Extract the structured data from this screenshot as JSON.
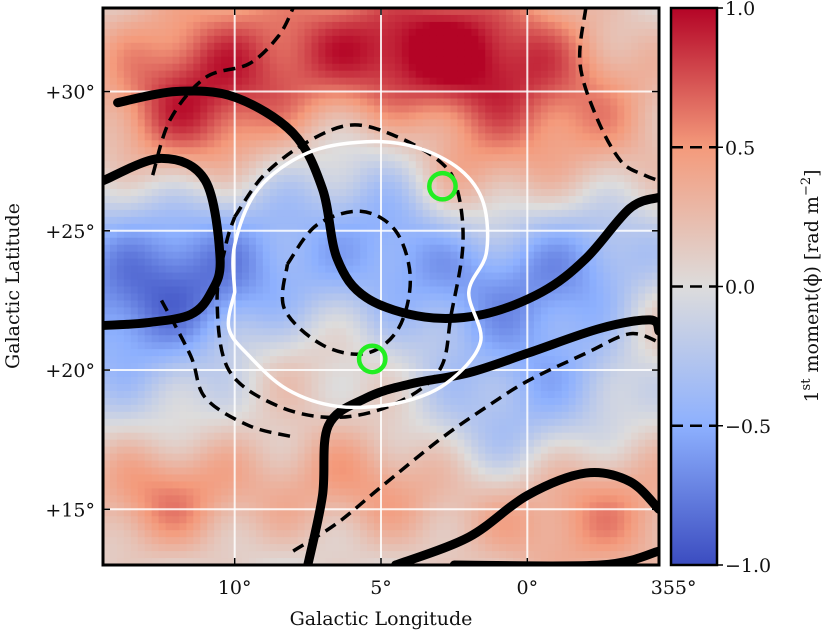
{
  "chart_data": {
    "type": "heatmap",
    "title": "",
    "xlabel": "Galactic Longitude",
    "ylabel": "Galactic Latitude",
    "x_axis_reversed": true,
    "xlim": [
      14.5,
      355.5
    ],
    "ylim": [
      13.0,
      33.0
    ],
    "x_ticks": [
      {
        "value": 10,
        "label": "10°"
      },
      {
        "value": 5,
        "label": "5°"
      },
      {
        "value": 0,
        "label": "0°"
      },
      {
        "value": 355,
        "label": "355°"
      }
    ],
    "y_ticks": [
      {
        "value": 15,
        "label": "+15°"
      },
      {
        "value": 20,
        "label": "+20°"
      },
      {
        "value": 25,
        "label": "+25°"
      },
      {
        "value": 30,
        "label": "+30°"
      }
    ],
    "grid": true,
    "grid_color": "#ffffff",
    "colorbar": {
      "label_prefix": "1",
      "label_sup": "st",
      "label_main": " moment(ϕ) [rad m",
      "label_exp": "−2",
      "label_suffix": "]",
      "colormap": "coolwarm",
      "range": [
        -1.0,
        1.0
      ],
      "ticks": [
        {
          "value": 1.0,
          "label": "1.0"
        },
        {
          "value": 0.5,
          "label": "0.5"
        },
        {
          "value": 0.0,
          "label": "0.0"
        },
        {
          "value": -0.5,
          "label": "−0.5"
        },
        {
          "value": -1.0,
          "label": "−1.0"
        }
      ],
      "contour_levels": [
        0.5,
        0.0,
        -0.5
      ]
    },
    "heatmap_blobs": [
      {
        "l": 8.5,
        "b": 31.5,
        "amp": 0.55,
        "sl": 4.0,
        "sb": 2.0
      },
      {
        "l": 11.5,
        "b": 29.0,
        "amp": 0.7,
        "sl": 2.2,
        "sb": 2.0
      },
      {
        "l": 2.5,
        "b": 31.5,
        "amp": 0.85,
        "sl": 3.0,
        "sb": 1.8
      },
      {
        "l": 358.5,
        "b": 29.0,
        "amp": 0.45,
        "sl": 3.0,
        "sb": 2.0
      },
      {
        "l": 2.8,
        "b": 26.5,
        "amp": 0.55,
        "sl": 1.8,
        "sb": 1.5
      },
      {
        "l": 12.5,
        "b": 22.5,
        "amp": -0.85,
        "sl": 2.8,
        "sb": 2.5
      },
      {
        "l": 7.0,
        "b": 24.5,
        "amp": -0.35,
        "sl": 3.5,
        "sb": 2.5
      },
      {
        "l": 4.0,
        "b": 26.0,
        "amp": -0.45,
        "sl": 1.5,
        "sb": 2.0
      },
      {
        "l": 0.5,
        "b": 23.0,
        "amp": -0.5,
        "sl": 2.5,
        "sb": 2.0
      },
      {
        "l": 357.0,
        "b": 24.0,
        "amp": -0.35,
        "sl": 2.0,
        "sb": 1.5
      },
      {
        "l": 9.0,
        "b": 20.5,
        "amp": 0.35,
        "sl": 3.0,
        "sb": 1.5
      },
      {
        "l": 358.5,
        "b": 19.5,
        "amp": -0.35,
        "sl": 3.0,
        "sb": 1.8
      },
      {
        "l": 5.5,
        "b": 16.0,
        "amp": 0.45,
        "sl": 3.0,
        "sb": 1.5
      },
      {
        "l": 12.5,
        "b": 15.5,
        "amp": 0.55,
        "sl": 2.0,
        "sb": 1.5
      },
      {
        "l": 358.0,
        "b": 15.0,
        "amp": 0.55,
        "sl": 3.0,
        "sb": 2.0
      },
      {
        "l": 1.0,
        "b": 17.0,
        "amp": -0.35,
        "sl": 2.0,
        "sb": 1.5
      },
      {
        "l": 355.5,
        "b": 21.5,
        "amp": 0.3,
        "sl": 1.5,
        "sb": 2.0
      }
    ],
    "overlay_lines": [
      {
        "style": "solid-thick",
        "color": "#000000",
        "points": [
          [
            14.0,
            29.6
          ],
          [
            12.0,
            30.0
          ],
          [
            10.0,
            29.8
          ],
          [
            8.0,
            28.5
          ],
          [
            7.0,
            26.5
          ],
          [
            6.5,
            24.0
          ],
          [
            5.5,
            22.6
          ],
          [
            3.5,
            21.9
          ],
          [
            1.5,
            22.0
          ],
          [
            359.5,
            22.8
          ],
          [
            358.0,
            24.0
          ],
          [
            356.5,
            25.8
          ],
          [
            355.5,
            26.2
          ]
        ]
      },
      {
        "style": "solid-thick",
        "color": "#000000",
        "points": [
          [
            14.5,
            26.8
          ],
          [
            12.5,
            27.6
          ],
          [
            11.0,
            26.8
          ],
          [
            10.5,
            24.0
          ],
          [
            10.8,
            22.8
          ],
          [
            11.5,
            22.0
          ],
          [
            13.0,
            21.7
          ],
          [
            14.5,
            21.6
          ]
        ]
      },
      {
        "style": "solid-thick",
        "color": "#000000",
        "points": [
          [
            7.5,
            13.0
          ],
          [
            7.0,
            15.5
          ],
          [
            6.8,
            18.0
          ],
          [
            5.5,
            19.0
          ],
          [
            4.0,
            19.5
          ],
          [
            2.0,
            19.9
          ],
          [
            0.0,
            20.6
          ],
          [
            357.5,
            21.5
          ],
          [
            355.8,
            21.8
          ],
          [
            355.5,
            21.4
          ]
        ]
      },
      {
        "style": "solid-thick",
        "color": "#000000",
        "points": [
          [
            4.5,
            13.0
          ],
          [
            2.0,
            14.0
          ],
          [
            0.0,
            15.5
          ],
          [
            358.0,
            16.3
          ],
          [
            356.5,
            16.0
          ],
          [
            355.5,
            15.0
          ]
        ]
      },
      {
        "style": "solid-thick",
        "color": "#000000",
        "points": [
          [
            362.5,
            13.0
          ],
          [
            357.5,
            13.0
          ],
          [
            355.5,
            13.5
          ]
        ]
      },
      {
        "style": "dashed",
        "color": "#000000",
        "points": [
          [
            10.0,
            25.5
          ],
          [
            9.0,
            27.0
          ],
          [
            7.5,
            28.2
          ],
          [
            6.0,
            28.8
          ],
          [
            4.5,
            28.4
          ],
          [
            3.0,
            27.5
          ],
          [
            2.4,
            26.5
          ],
          [
            2.2,
            24.5
          ],
          [
            2.6,
            22.0
          ],
          [
            3.0,
            20.0
          ],
          [
            4.5,
            18.8
          ],
          [
            6.5,
            18.3
          ],
          [
            8.5,
            18.7
          ],
          [
            10.2,
            20.0
          ],
          [
            10.6,
            22.5
          ],
          [
            10.3,
            24.5
          ],
          [
            10.0,
            25.5
          ]
        ]
      },
      {
        "style": "dashed",
        "color": "#000000",
        "points": [
          [
            8.2,
            23.8
          ],
          [
            7.2,
            25.2
          ],
          [
            5.7,
            25.7
          ],
          [
            4.5,
            25.0
          ],
          [
            4.0,
            23.3
          ],
          [
            4.4,
            21.5
          ],
          [
            5.5,
            20.6
          ],
          [
            7.0,
            20.9
          ],
          [
            8.3,
            22.2
          ],
          [
            8.2,
            23.8
          ]
        ]
      },
      {
        "style": "dashed",
        "color": "#000000",
        "points": [
          [
            12.8,
            27.0
          ],
          [
            12.2,
            29.0
          ],
          [
            11.0,
            30.5
          ],
          [
            9.5,
            31.0
          ],
          [
            8.5,
            32.0
          ],
          [
            8.0,
            33.0
          ]
        ]
      },
      {
        "style": "dashed",
        "color": "#000000",
        "points": [
          [
            358.0,
            33.0
          ],
          [
            358.2,
            31.0
          ],
          [
            357.6,
            29.0
          ],
          [
            356.8,
            27.5
          ],
          [
            356.0,
            27.0
          ],
          [
            355.5,
            26.8
          ]
        ]
      },
      {
        "style": "dashed",
        "color": "#000000",
        "points": [
          [
            8.0,
            13.5
          ],
          [
            6.5,
            14.5
          ],
          [
            5.0,
            15.8
          ],
          [
            3.0,
            17.5
          ],
          [
            1.5,
            18.6
          ],
          [
            0.0,
            19.6
          ],
          [
            358.0,
            20.6
          ],
          [
            356.5,
            21.3
          ],
          [
            355.5,
            21.0
          ]
        ]
      },
      {
        "style": "dashed",
        "color": "#000000",
        "points": [
          [
            12.5,
            22.5
          ],
          [
            11.5,
            20.5
          ],
          [
            11.0,
            19.0
          ],
          [
            9.5,
            18.0
          ],
          [
            8.0,
            17.6
          ]
        ]
      },
      {
        "style": "solid-white",
        "color": "#ffffff",
        "points": [
          [
            10.0,
            22.8
          ],
          [
            10.0,
            24.5
          ],
          [
            9.2,
            26.5
          ],
          [
            7.5,
            27.8
          ],
          [
            5.5,
            28.2
          ],
          [
            3.8,
            28.0
          ],
          [
            2.3,
            27.2
          ],
          [
            1.5,
            26.0
          ],
          [
            1.4,
            24.2
          ],
          [
            2.0,
            22.8
          ],
          [
            1.6,
            21.0
          ],
          [
            2.8,
            19.5
          ],
          [
            4.5,
            18.8
          ],
          [
            6.5,
            18.7
          ],
          [
            8.2,
            19.3
          ],
          [
            9.5,
            20.5
          ],
          [
            10.2,
            21.5
          ],
          [
            10.0,
            22.8
          ]
        ]
      }
    ],
    "markers": [
      {
        "shape": "circle",
        "color": "#22ee22",
        "l": 2.9,
        "b": 26.6,
        "r_deg": 0.45
      },
      {
        "shape": "circle",
        "color": "#22ee22",
        "l": 5.3,
        "b": 20.4,
        "r_deg": 0.45
      }
    ]
  }
}
